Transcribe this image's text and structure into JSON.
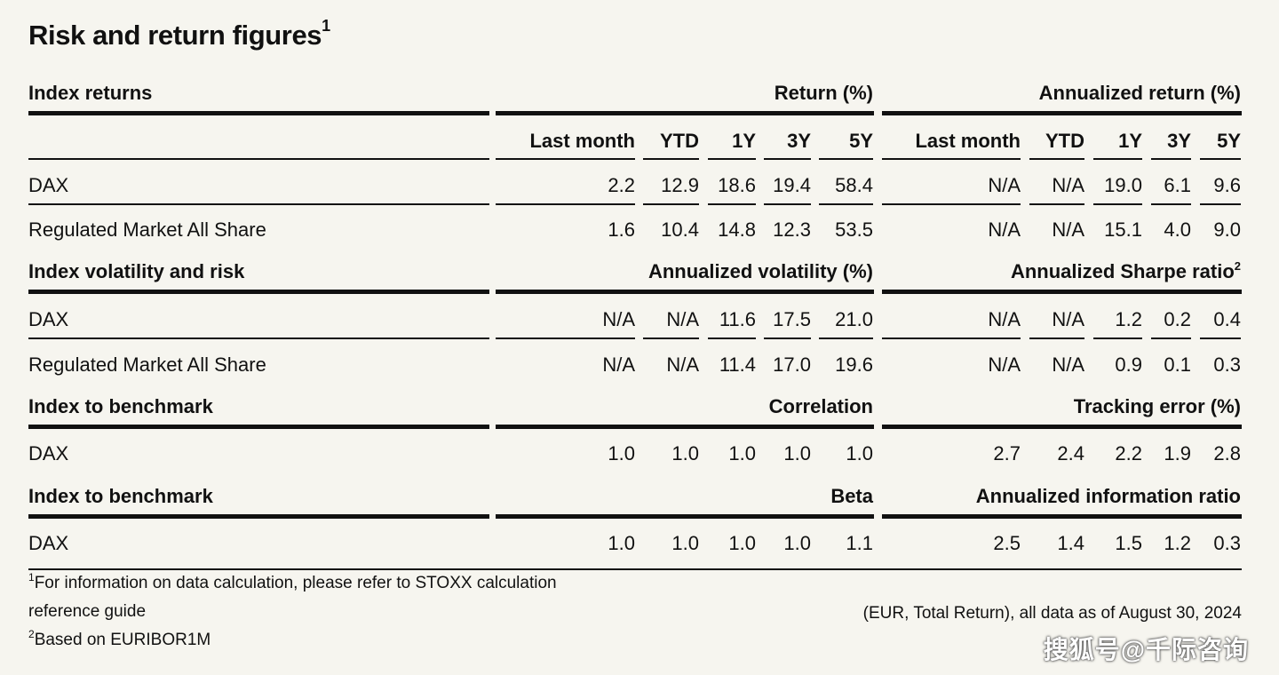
{
  "title": "Risk and return figures",
  "title_sup": "1",
  "sections": {
    "returns": {
      "label": "Index returns",
      "left_group": "Return (%)",
      "right_group": "Annualized return (%)",
      "columns": [
        "Last month",
        "YTD",
        "1Y",
        "3Y",
        "5Y"
      ],
      "rows": [
        {
          "name": "DAX",
          "left": [
            "2.2",
            "12.9",
            "18.6",
            "19.4",
            "58.4"
          ],
          "right": [
            "N/A",
            "N/A",
            "19.0",
            "6.1",
            "9.6"
          ]
        },
        {
          "name": "Regulated Market All Share",
          "left": [
            "1.6",
            "10.4",
            "14.8",
            "12.3",
            "53.5"
          ],
          "right": [
            "N/A",
            "N/A",
            "15.1",
            "4.0",
            "9.0"
          ]
        }
      ]
    },
    "volatility": {
      "label": "Index volatility and risk",
      "left_group": "Annualized volatility (%)",
      "right_group": "Annualized Sharpe ratio",
      "right_group_sup": "2",
      "rows": [
        {
          "name": "DAX",
          "left": [
            "N/A",
            "N/A",
            "11.6",
            "17.5",
            "21.0"
          ],
          "right": [
            "N/A",
            "N/A",
            "1.2",
            "0.2",
            "0.4"
          ]
        },
        {
          "name": "Regulated Market All Share",
          "left": [
            "N/A",
            "N/A",
            "11.4",
            "17.0",
            "19.6"
          ],
          "right": [
            "N/A",
            "N/A",
            "0.9",
            "0.1",
            "0.3"
          ]
        }
      ]
    },
    "correlation": {
      "label": "Index to benchmark",
      "left_group": "Correlation",
      "right_group": "Tracking error (%)",
      "rows": [
        {
          "name": "DAX",
          "left": [
            "1.0",
            "1.0",
            "1.0",
            "1.0",
            "1.0"
          ],
          "right": [
            "2.7",
            "2.4",
            "2.2",
            "1.9",
            "2.8"
          ]
        }
      ]
    },
    "beta": {
      "label": "Index to benchmark",
      "left_group": "Beta",
      "right_group": "Annualized information ratio",
      "rows": [
        {
          "name": "DAX",
          "left": [
            "1.0",
            "1.0",
            "1.0",
            "1.0",
            "1.1"
          ],
          "right": [
            "2.5",
            "1.4",
            "1.5",
            "1.2",
            "0.3"
          ]
        }
      ]
    }
  },
  "footnotes": {
    "note1_sup": "1",
    "note1_line1": "For information on data calculation, please refer to STOXX calculation",
    "note1_line2": "reference guide",
    "note2_sup": "2",
    "note2": "Based on EURIBOR1M",
    "as_of": "(EUR, Total Return), all data as of August 30, 2024"
  },
  "watermark": "搜狐号@千际咨询"
}
